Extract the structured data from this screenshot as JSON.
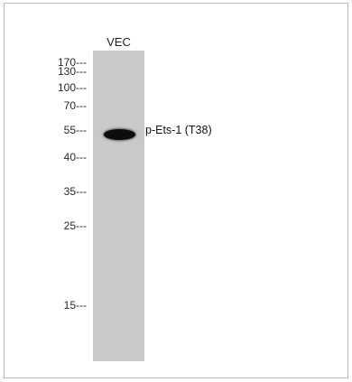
{
  "lane": {
    "label": "VEC"
  },
  "markers": [
    {
      "label": "170---",
      "kda": 170
    },
    {
      "label": "130---",
      "kda": 130
    },
    {
      "label": "100---",
      "kda": 100
    },
    {
      "label": "70---",
      "kda": 70
    },
    {
      "label": "55---",
      "kda": 55
    },
    {
      "label": "40---",
      "kda": 40
    },
    {
      "label": "35---",
      "kda": 35
    },
    {
      "label": "25---",
      "kda": 25
    },
    {
      "label": "15---",
      "kda": 15
    }
  ],
  "band": {
    "label": "p-Ets-1 (T38)",
    "kda": 52
  },
  "colors": {
    "lane": "#c9c9c9",
    "band": "#0d0d0d",
    "frame": "#b9b9b9"
  }
}
